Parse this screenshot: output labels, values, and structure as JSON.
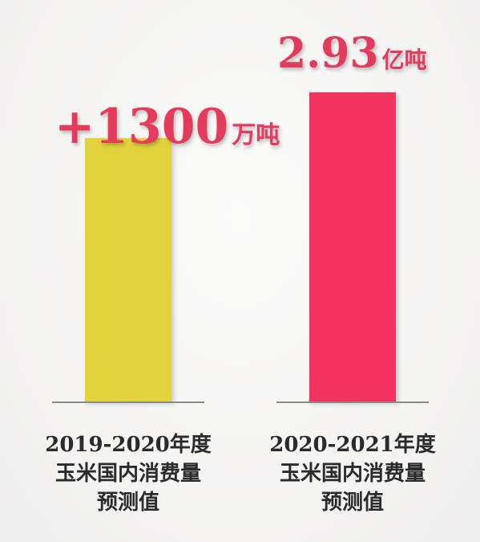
{
  "chart_data": {
    "type": "bar",
    "categories": [
      [
        "2019-2020年度",
        "玉米国内消费量",
        "预测值"
      ],
      [
        "2020-2021年度",
        "玉米国内消费量",
        "预测值"
      ]
    ],
    "values": [
      2.8,
      2.93
    ],
    "unit": "亿吨",
    "annotations": [
      {
        "bar": 0,
        "number": "+1300",
        "unit": "万吨"
      },
      {
        "bar": 1,
        "number": "2.93",
        "unit": "亿吨"
      }
    ],
    "title": "",
    "xlabel": "",
    "ylabel": "",
    "axis": "hidden",
    "grid": false
  },
  "colors": {
    "bars": [
      "#e2d33c",
      "#f2335f"
    ],
    "annotation": "#e23a5c",
    "baseline": "#8a8a8a",
    "labels": "#2b2b2b"
  }
}
